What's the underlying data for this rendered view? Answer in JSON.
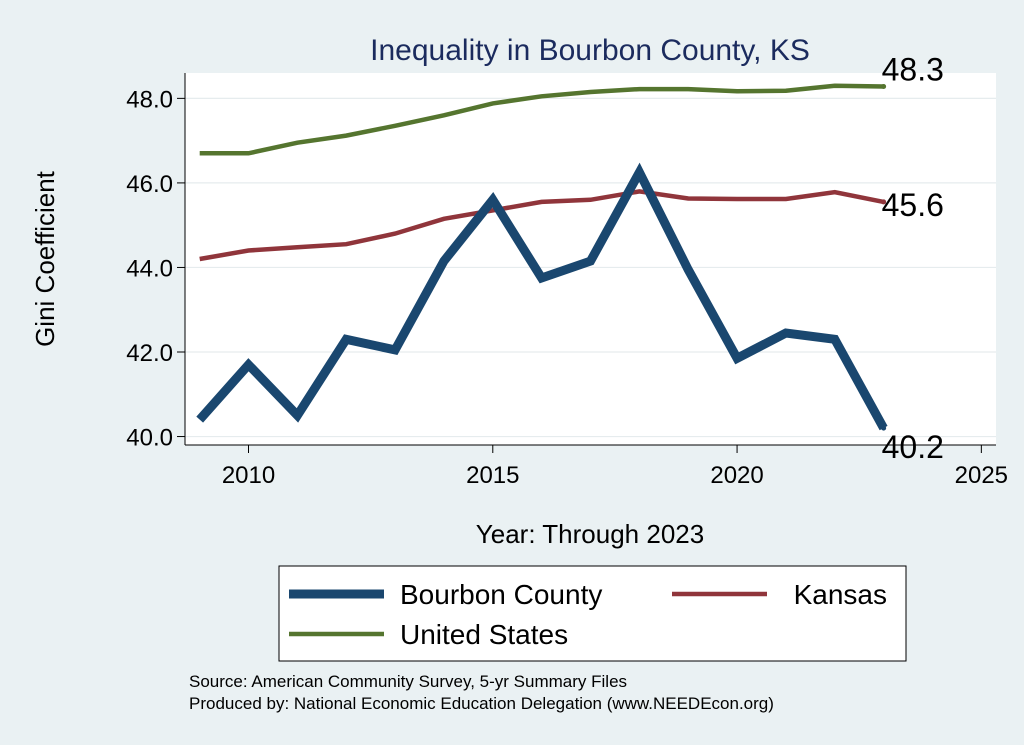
{
  "chart_data": {
    "type": "line",
    "title": "Inequality in Bourbon County, KS",
    "xlabel": "Year: Through 2023",
    "ylabel": "Gini Coefficient",
    "xlim": [
      2008.7,
      2025.3
    ],
    "ylim": [
      39.8,
      48.6
    ],
    "xticks": [
      2010,
      2015,
      2020,
      2025
    ],
    "yticks": [
      40.0,
      42.0,
      44.0,
      46.0,
      48.0
    ],
    "ytick_labels": [
      "40.0",
      "42.0",
      "44.0",
      "46.0",
      "48.0"
    ],
    "grid": true,
    "x": [
      2009,
      2010,
      2011,
      2012,
      2013,
      2014,
      2015,
      2016,
      2017,
      2018,
      2019,
      2020,
      2021,
      2022,
      2023
    ],
    "series": [
      {
        "name": "Bourbon County",
        "color": "#1a476f",
        "width": 9,
        "values": [
          40.4,
          41.7,
          40.5,
          42.3,
          42.05,
          44.15,
          45.6,
          43.75,
          44.15,
          46.25,
          43.95,
          41.85,
          42.45,
          42.3,
          40.2
        ],
        "end_label": "40.2"
      },
      {
        "name": "Kansas",
        "color": "#90353b",
        "width": 4.5,
        "values": [
          44.2,
          44.4,
          44.48,
          44.55,
          44.8,
          45.15,
          45.35,
          45.55,
          45.6,
          45.8,
          45.63,
          45.62,
          45.62,
          45.78,
          45.55
        ],
        "end_label": "45.6"
      },
      {
        "name": "United States",
        "color": "#55752f",
        "width": 4.5,
        "values": [
          46.7,
          46.7,
          46.95,
          47.12,
          47.35,
          47.6,
          47.88,
          48.05,
          48.15,
          48.22,
          48.22,
          48.17,
          48.18,
          48.3,
          48.28
        ],
        "end_label": "48.3"
      }
    ],
    "legend": {
      "position": "bottom",
      "columns": 2
    },
    "source_lines": [
      "Source: American Community Survey, 5-yr Summary Files",
      "Produced by: National Economic Education Delegation (www.NEEDEcon.org)"
    ]
  }
}
